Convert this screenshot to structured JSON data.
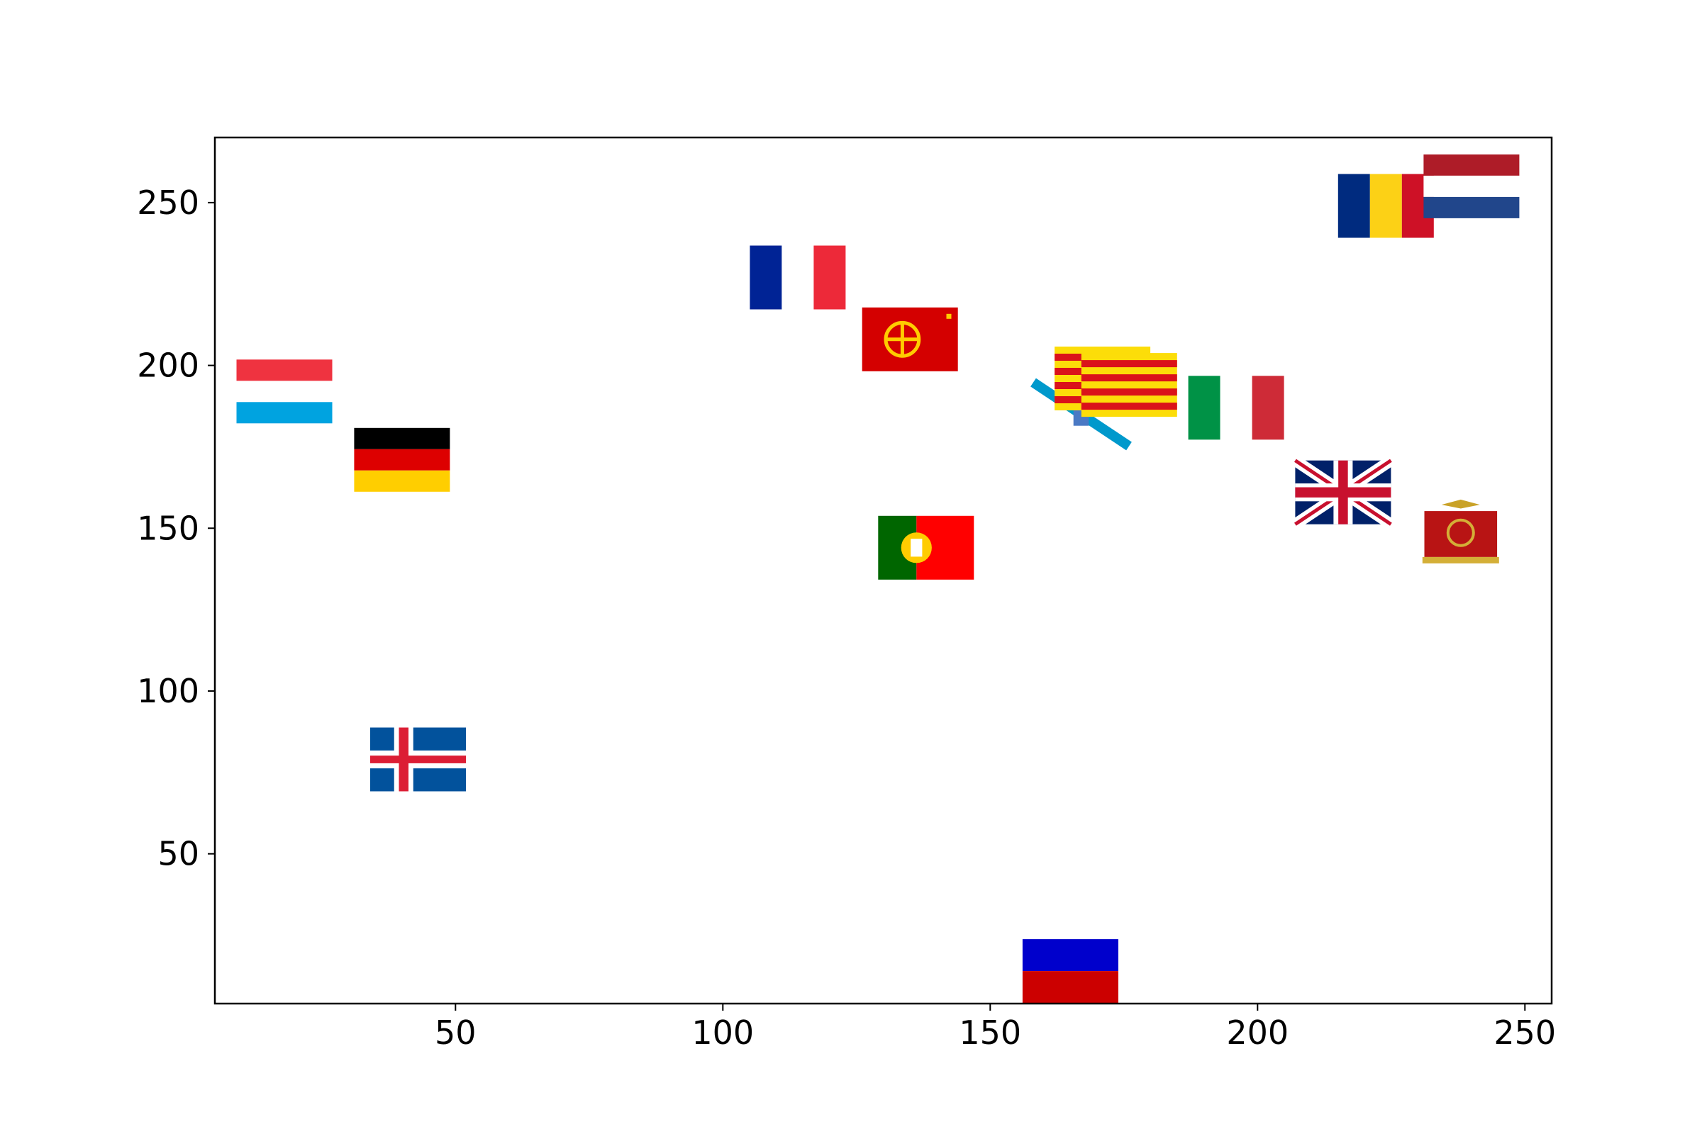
{
  "chart_data": {
    "type": "scatter",
    "title": "",
    "xlabel": "",
    "ylabel": "",
    "xlim": [
      5,
      255
    ],
    "ylim": [
      4,
      270
    ],
    "xticks": [
      50,
      100,
      150,
      200,
      250
    ],
    "yticks": [
      50,
      100,
      150,
      200,
      250
    ],
    "grid": false,
    "legend": "none",
    "marker": "flag-image",
    "points": [
      {
        "flag": "luxembourg",
        "x": 18,
        "y": 192
      },
      {
        "flag": "germany",
        "x": 40,
        "y": 171
      },
      {
        "flag": "iceland",
        "x": 43,
        "y": 79
      },
      {
        "flag": "france",
        "x": 114,
        "y": 227
      },
      {
        "flag": "occitania",
        "x": 135,
        "y": 208
      },
      {
        "flag": "portugal",
        "x": 138,
        "y": 144
      },
      {
        "flag": "russia",
        "x": 165,
        "y": 14
      },
      {
        "flag": "galicia",
        "x": 167,
        "y": 185
      },
      {
        "flag": "catalonia",
        "x": 171,
        "y": 196
      },
      {
        "flag": "catalonia",
        "x": 176,
        "y": 194
      },
      {
        "flag": "italy",
        "x": 196,
        "y": 187
      },
      {
        "flag": "united-kingdom",
        "x": 216,
        "y": 161
      },
      {
        "flag": "romania",
        "x": 224,
        "y": 249
      },
      {
        "flag": "roman-empire",
        "x": 238,
        "y": 149
      },
      {
        "flag": "netherlands",
        "x": 240,
        "y": 255
      }
    ]
  }
}
